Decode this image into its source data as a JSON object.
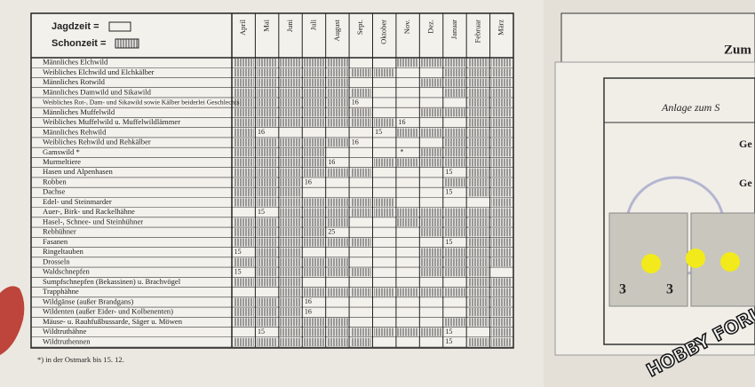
{
  "legend": {
    "open": "Jagdzeit =",
    "closed": "Schonzeit ="
  },
  "months": [
    "April",
    "Mai",
    "Juni",
    "Juli",
    "August",
    "Sept.",
    "Oktober",
    "Nov.",
    "Dez.",
    "Januar",
    "Februar",
    "März"
  ],
  "rows": [
    {
      "name": "Männliches Elchwild",
      "open_months": [
        5,
        6
      ],
      "notes": []
    },
    {
      "name": "Weibliches Elchwild und Elchkälber",
      "open_months": [
        7,
        8
      ],
      "notes": []
    },
    {
      "name": "Männliches Rotwild",
      "open_months": [
        5,
        6,
        7
      ],
      "notes": []
    },
    {
      "name": "Männliches Damwild und Sikawild",
      "open_months": [
        6,
        7,
        8
      ],
      "notes": []
    },
    {
      "name": "Weibliches Rot-, Dam- und Sikawild sowie Kälber beiderlei Geschlechts",
      "open_months": [
        5,
        6,
        7,
        8,
        9
      ],
      "notes": [
        {
          "month": 5,
          "text": 16
        }
      ]
    },
    {
      "name": "Männliches Muffelwild",
      "open_months": [
        6,
        7
      ],
      "notes": []
    },
    {
      "name": "Weibliches Muffelwild u. Muffelwildlämmer",
      "open_months": [
        7,
        8,
        9
      ],
      "notes": [
        {
          "month": 7,
          "text": 16
        }
      ]
    },
    {
      "name": "Männliches Rehwild",
      "open_months": [
        1,
        2,
        3,
        4,
        5,
        6
      ],
      "notes": [
        {
          "month": 1,
          "text": 16
        },
        {
          "month": 6,
          "text": 15
        }
      ]
    },
    {
      "name": "Weibliches Rehwild und Rehkälber",
      "open_months": [
        5,
        6,
        7,
        8
      ],
      "notes": [
        {
          "month": 5,
          "text": 16
        }
      ]
    },
    {
      "name": "Gamswild *",
      "open_months": [
        4,
        5,
        6,
        7
      ],
      "notes": [
        {
          "month": 7,
          "text": "*"
        }
      ]
    },
    {
      "name": "Murmeltiere",
      "open_months": [
        4,
        5
      ],
      "notes": [
        {
          "month": 4,
          "text": 16
        }
      ]
    },
    {
      "name": "Hasen und Alpenhasen",
      "open_months": [
        6,
        7,
        8,
        9
      ],
      "notes": [
        {
          "month": 9,
          "text": 15
        }
      ]
    },
    {
      "name": "Robben",
      "open_months": [
        3,
        4,
        5,
        6,
        7,
        8
      ],
      "notes": [
        {
          "month": 3,
          "text": 16
        }
      ]
    },
    {
      "name": "Dachse",
      "open_months": [
        3,
        4,
        5,
        6,
        7,
        8,
        9
      ],
      "notes": [
        {
          "month": 9,
          "text": 15
        }
      ]
    },
    {
      "name": "Edel- und Steinmarder",
      "open_months": [
        7,
        8,
        9,
        10
      ],
      "notes": []
    },
    {
      "name": "Auer-, Birk- und Rackelhähne",
      "open_months": [
        0,
        1
      ],
      "notes": [
        {
          "month": 1,
          "text": 15
        }
      ]
    },
    {
      "name": "Hasel-, Schnee- und Steinhühner",
      "open_months": [
        5,
        6
      ],
      "notes": []
    },
    {
      "name": "Rebhühner",
      "open_months": [
        4,
        5,
        6,
        7
      ],
      "notes": [
        {
          "month": 4,
          "text": 25
        }
      ]
    },
    {
      "name": "Fasanen",
      "open_months": [
        6,
        7,
        8,
        9
      ],
      "notes": [
        {
          "month": 9,
          "text": 15
        }
      ]
    },
    {
      "name": "Ringeltauben",
      "open_months": [
        0,
        3,
        4,
        5,
        6,
        7
      ],
      "notes": [
        {
          "month": 0,
          "text": 15
        }
      ]
    },
    {
      "name": "Drosseln",
      "open_months": [
        5,
        6,
        7
      ],
      "notes": []
    },
    {
      "name": "Waldschnepfen",
      "open_months": [
        0,
        6,
        7,
        11
      ],
      "notes": [
        {
          "month": 0,
          "text": 15
        }
      ]
    },
    {
      "name": "Sumpfschnepfen (Bekassinen) u. Brachvögel",
      "open_months": [
        3,
        4,
        5,
        6,
        7,
        8,
        9
      ],
      "notes": []
    },
    {
      "name": "Trapphähne",
      "open_months": [
        0,
        1
      ],
      "notes": []
    },
    {
      "name": "Wildgänse (außer Brandgans)",
      "open_months": [
        3,
        4,
        5,
        6,
        7,
        8,
        9
      ],
      "notes": [
        {
          "month": 3,
          "text": 16
        }
      ]
    },
    {
      "name": "Wildenten (außer Eider- und Kolbenenten)",
      "open_months": [
        3,
        4,
        5,
        6,
        7,
        8,
        9
      ],
      "notes": [
        {
          "month": 3,
          "text": 16
        }
      ]
    },
    {
      "name": "Mäuse- u. Rauhfußbussarde, Säger u. Möwen",
      "open_months": [
        5,
        6,
        7,
        8
      ],
      "notes": []
    },
    {
      "name": "Wildtruthähne",
      "open_months": [
        0,
        1,
        9,
        10
      ],
      "notes": [
        {
          "month": 1,
          "text": 15
        },
        {
          "month": 9,
          "text": 15
        }
      ]
    },
    {
      "name": "Wildtruthennen",
      "open_months": [
        6,
        7,
        8,
        9
      ],
      "notes": [
        {
          "month": 9,
          "text": 15
        }
      ]
    }
  ],
  "footnote": "*) in der Ostmark bis 15. 12.",
  "right_page": {
    "title": "Zum",
    "subtitle": "Anlage zum S",
    "field_1": "Ge",
    "field_2": "Ge",
    "stamp_1": "3",
    "stamp_2": "3",
    "watermark": "HOBBY FORUM"
  }
}
